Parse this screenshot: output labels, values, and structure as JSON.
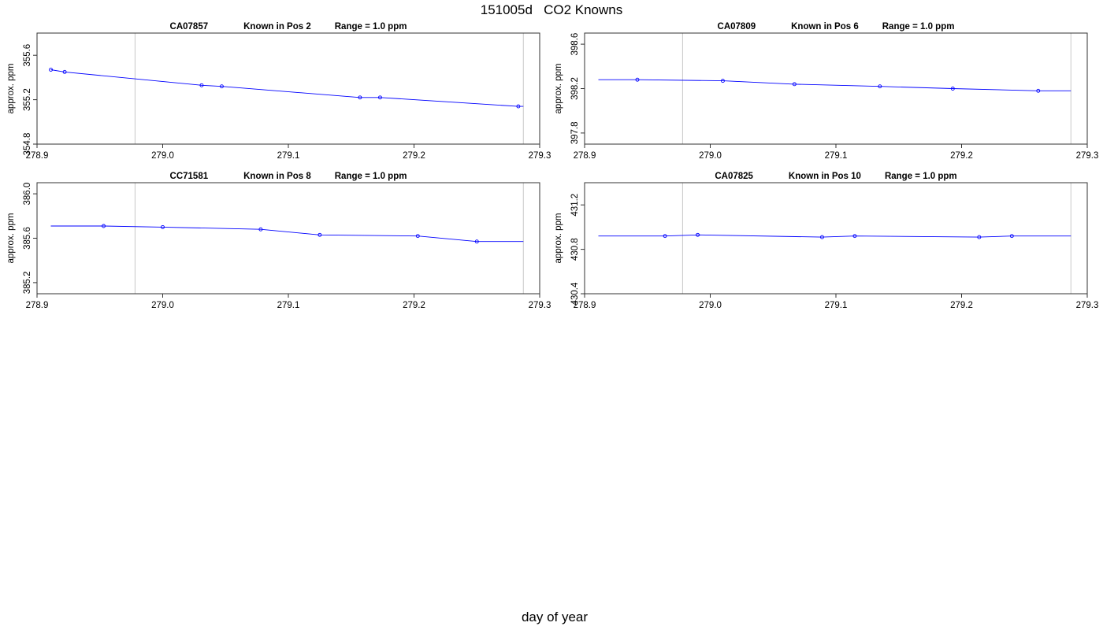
{
  "page": {
    "title": "151005d   CO2 Knowns",
    "xlabel": "day of year"
  },
  "chart_data": [
    {
      "type": "line",
      "title_parts": [
        "CA07857",
        "Known in Pos 2",
        "Range = 1.0 ppm"
      ],
      "xlabel": "",
      "ylabel": "approx. ppm",
      "xlim": [
        278.9,
        279.3
      ],
      "ylim": [
        354.8,
        355.8
      ],
      "xticks": [
        278.9,
        279.0,
        279.1,
        279.2,
        279.3
      ],
      "yticks": [
        354.8,
        355.2,
        355.6
      ],
      "vlines": [
        278.978,
        279.287
      ],
      "series": [
        {
          "color": "#0000ff",
          "x": [
            278.911,
            278.922,
            279.031,
            279.047,
            279.157,
            279.173,
            279.283,
            279.287
          ],
          "y": [
            355.47,
            355.45,
            355.33,
            355.32,
            355.22,
            355.22,
            355.14,
            355.14
          ],
          "markers": [
            true,
            true,
            true,
            true,
            true,
            true,
            true,
            false
          ]
        }
      ]
    },
    {
      "type": "line",
      "title_parts": [
        "CA07809",
        "Known in Pos 6",
        "Range = 1.0 ppm"
      ],
      "xlabel": "",
      "ylabel": "approx. ppm",
      "xlim": [
        278.9,
        279.3
      ],
      "ylim": [
        397.7,
        398.7
      ],
      "xticks": [
        278.9,
        279.0,
        279.1,
        279.2,
        279.3
      ],
      "yticks": [
        397.8,
        398.2,
        398.6
      ],
      "vlines": [
        278.978,
        279.287
      ],
      "series": [
        {
          "color": "#0000ff",
          "x": [
            278.911,
            278.942,
            279.01,
            279.067,
            279.135,
            279.193,
            279.261,
            279.287
          ],
          "y": [
            398.28,
            398.28,
            398.27,
            398.24,
            398.22,
            398.2,
            398.18,
            398.18
          ],
          "markers": [
            false,
            true,
            true,
            true,
            true,
            true,
            true,
            false
          ]
        }
      ]
    },
    {
      "type": "line",
      "title_parts": [
        "CC71581",
        "Known in Pos 8",
        "Range = 1.0 ppm"
      ],
      "xlabel": "",
      "ylabel": "approx. ppm",
      "xlim": [
        278.9,
        279.3
      ],
      "ylim": [
        385.1,
        386.1
      ],
      "xticks": [
        278.9,
        279.0,
        279.1,
        279.2,
        279.3
      ],
      "yticks": [
        385.2,
        385.6,
        386.0
      ],
      "vlines": [
        278.978,
        279.287
      ],
      "series": [
        {
          "color": "#0000ff",
          "x": [
            278.911,
            278.953,
            279.0,
            279.078,
            279.125,
            279.203,
            279.25,
            279.287
          ],
          "y": [
            385.71,
            385.71,
            385.7,
            385.68,
            385.63,
            385.62,
            385.57,
            385.57
          ],
          "markers": [
            false,
            true,
            true,
            true,
            true,
            true,
            true,
            false
          ]
        }
      ]
    },
    {
      "type": "line",
      "title_parts": [
        "CA07825",
        "Known in Pos 10",
        "Range = 1.0 ppm"
      ],
      "xlabel": "",
      "ylabel": "approx. ppm",
      "xlim": [
        278.9,
        279.3
      ],
      "ylim": [
        430.4,
        431.4
      ],
      "xticks": [
        278.9,
        279.0,
        279.1,
        279.2,
        279.3
      ],
      "yticks": [
        430.4,
        430.8,
        431.2
      ],
      "vlines": [
        278.978,
        279.287
      ],
      "series": [
        {
          "color": "#0000ff",
          "x": [
            278.911,
            278.964,
            278.99,
            279.089,
            279.115,
            279.214,
            279.24,
            279.287
          ],
          "y": [
            430.92,
            430.92,
            430.93,
            430.91,
            430.92,
            430.91,
            430.92,
            430.92
          ],
          "markers": [
            false,
            true,
            true,
            true,
            true,
            true,
            true,
            false
          ]
        }
      ]
    }
  ]
}
